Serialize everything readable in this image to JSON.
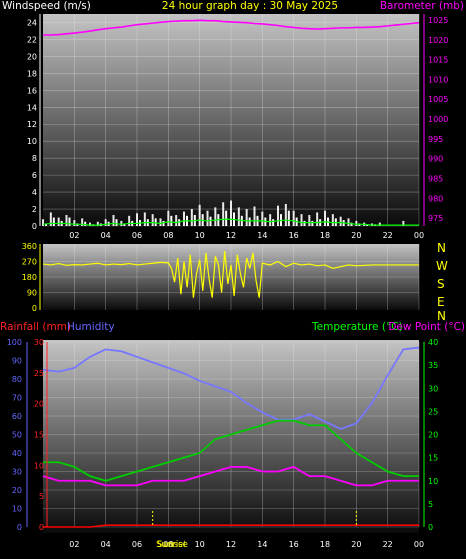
{
  "header": {
    "left_label": "Windspeed (m/s)",
    "title": "24 hour graph day : 30 May 2025",
    "right_label": "Barometer (mb)"
  },
  "colors": {
    "windspeed": "#ffffff",
    "gust": "#ffffff",
    "wind_avg": "#00ff00",
    "barometer": "#ff00ff",
    "direction": "#ffff00",
    "rainfall": "#ff0000",
    "humidity": "#7777ff",
    "temperature": "#00cc00",
    "dewpoint": "#ff00ff",
    "title": "#ffff00",
    "rainfall_axis": "#ff2222",
    "humidity_axis": "#6666ff",
    "temp_axis": "#00ff00",
    "baro_axis": "#ff00ff"
  },
  "x_tick_labels": [
    "02",
    "04",
    "06",
    "08",
    "10",
    "12",
    "14",
    "16",
    "18",
    "20",
    "22",
    "00"
  ],
  "compass": [
    "N",
    "W",
    "S",
    "E",
    "N"
  ],
  "chart_data": [
    {
      "type": "line",
      "name": "wind-barometer",
      "title": "24 hour graph day : 30 May 2025",
      "x_hours": [
        0,
        0.5,
        1,
        1.5,
        2,
        2.5,
        3,
        3.5,
        4,
        4.5,
        5,
        5.5,
        6,
        6.5,
        7,
        7.5,
        8,
        8.5,
        9,
        9.5,
        10,
        10.5,
        11,
        11.5,
        12,
        12.5,
        13,
        13.5,
        14,
        14.5,
        15,
        15.5,
        16,
        16.5,
        17,
        17.5,
        18,
        18.5,
        19,
        19.5,
        20,
        20.5,
        21,
        21.5,
        22,
        22.5,
        23,
        23.5,
        24
      ],
      "left_axis": {
        "label": "Windspeed (m/s)",
        "ticks": [
          0,
          2,
          4,
          6,
          8,
          10,
          12,
          14,
          16,
          18,
          20,
          22,
          24
        ],
        "range": [
          0,
          25
        ]
      },
      "right_axis": {
        "label": "Barometer (mb)",
        "ticks": [
          975,
          980,
          985,
          990,
          995,
          1000,
          1005,
          1010,
          1015,
          1020,
          1025
        ],
        "range": [
          973,
          1026.5
        ]
      },
      "series": [
        {
          "name": "Windspeed",
          "axis": "left",
          "values": [
            0.3,
            1.0,
            0.6,
            1.0,
            0.3,
            0.5,
            0.2,
            0.3,
            0.5,
            0.8,
            0.3,
            0.6,
            0.7,
            0.8,
            0.9,
            0.6,
            1.2,
            0.8,
            1.2,
            1.3,
            1.4,
            1.1,
            1.4,
            1.8,
            1.6,
            1.2,
            1.0,
            1.2,
            1.0,
            0.8,
            1.4,
            1.8,
            1.0,
            0.6,
            0.6,
            0.8,
            1.0,
            0.9,
            0.7,
            0.4,
            0.3,
            0.2,
            0.2,
            0.0,
            0.0,
            0.0,
            0.0,
            0.0,
            0.0
          ]
        },
        {
          "name": "Gust",
          "axis": "left",
          "values": [
            0.8,
            1.6,
            1.0,
            1.3,
            0.7,
            0.9,
            0.4,
            0.5,
            0.8,
            1.3,
            0.6,
            1.2,
            1.5,
            1.6,
            1.4,
            0.9,
            1.8,
            1.3,
            1.7,
            2.0,
            2.5,
            1.8,
            2.2,
            2.8,
            3.0,
            2.2,
            2.0,
            2.3,
            1.7,
            1.4,
            2.4,
            2.6,
            1.8,
            1.4,
            1.3,
            1.6,
            1.8,
            1.4,
            1.1,
            0.9,
            0.6,
            0.4,
            0.3,
            0.4,
            0.0,
            0.0,
            0.6,
            0.0,
            0.0
          ]
        },
        {
          "name": "Average",
          "axis": "left",
          "values": [
            0.2,
            0.3,
            0.3,
            0.3,
            0.2,
            0.2,
            0.1,
            0.1,
            0.2,
            0.3,
            0.2,
            0.3,
            0.3,
            0.4,
            0.4,
            0.3,
            0.5,
            0.4,
            0.6,
            0.6,
            0.7,
            0.6,
            0.7,
            0.8,
            0.8,
            0.7,
            0.6,
            0.6,
            0.6,
            0.5,
            0.6,
            0.7,
            0.6,
            0.4,
            0.4,
            0.4,
            0.5,
            0.4,
            0.4,
            0.3,
            0.2,
            0.2,
            0.1,
            0.1,
            0.1,
            0.1,
            0.1,
            0.1,
            0.1
          ]
        },
        {
          "name": "Barometer",
          "axis": "right",
          "values": [
            1021.2,
            1021.2,
            1021.3,
            1021.5,
            1021.7,
            1021.9,
            1022.2,
            1022.5,
            1022.8,
            1023.0,
            1023.2,
            1023.5,
            1023.8,
            1024.0,
            1024.2,
            1024.4,
            1024.6,
            1024.7,
            1024.8,
            1024.8,
            1024.9,
            1024.8,
            1024.8,
            1024.6,
            1024.5,
            1024.4,
            1024.3,
            1024.1,
            1024.0,
            1023.8,
            1023.6,
            1023.3,
            1023.1,
            1022.9,
            1022.8,
            1022.7,
            1022.8,
            1022.9,
            1023.0,
            1023.0,
            1023.1,
            1023.1,
            1023.2,
            1023.3,
            1023.5,
            1023.7,
            1023.9,
            1024.1,
            1024.3
          ]
        }
      ]
    },
    {
      "type": "scatter",
      "name": "wind-direction",
      "y_axis": {
        "ticks": [
          0,
          90,
          180,
          270,
          360
        ],
        "range": [
          0,
          360
        ]
      },
      "series": [
        {
          "name": "Direction",
          "x_hours": [
            0,
            0.5,
            1,
            1.5,
            2,
            2.5,
            3,
            3.5,
            4,
            4.5,
            5,
            5.5,
            6,
            6.5,
            7,
            7.5,
            8,
            8.2,
            8.4,
            8.6,
            8.8,
            9,
            9.2,
            9.4,
            9.6,
            9.8,
            10,
            10.2,
            10.4,
            10.6,
            10.8,
            11,
            11.2,
            11.4,
            11.6,
            11.8,
            12,
            12.2,
            12.4,
            12.6,
            12.8,
            13,
            13.2,
            13.4,
            13.6,
            13.8,
            14,
            14.5,
            15,
            15.5,
            16,
            16.5,
            17,
            17.5,
            18,
            18.5,
            19,
            19.5,
            20,
            21,
            22,
            23,
            24
          ],
          "values": [
            255,
            250,
            258,
            248,
            252,
            250,
            255,
            260,
            250,
            255,
            252,
            258,
            250,
            255,
            260,
            265,
            262,
            230,
            150,
            290,
            80,
            270,
            120,
            310,
            60,
            200,
            280,
            100,
            320,
            170,
            60,
            300,
            250,
            90,
            330,
            140,
            250,
            70,
            310,
            200,
            120,
            290,
            230,
            320,
            160,
            60,
            260,
            250,
            270,
            240,
            260,
            250,
            255,
            245,
            250,
            230,
            240,
            250,
            245,
            250,
            250,
            250,
            250
          ]
        }
      ]
    },
    {
      "type": "line",
      "name": "rain-humidity-temperature",
      "x_hours": [
        0,
        1,
        2,
        3,
        4,
        5,
        6,
        7,
        8,
        9,
        10,
        11,
        12,
        13,
        14,
        15,
        16,
        17,
        18,
        19,
        20,
        21,
        22,
        23,
        24
      ],
      "left_outer_axis": {
        "label": "Rainfall (mm)",
        "ticks": [
          0,
          5,
          10,
          15,
          20,
          25,
          30
        ],
        "range": [
          0,
          30
        ]
      },
      "left_inner_axis": {
        "label": "Humidity",
        "ticks": [
          0,
          10,
          20,
          30,
          40,
          50,
          60,
          70,
          80,
          90,
          100
        ],
        "range": [
          0,
          100
        ]
      },
      "right_axis": {
        "label": "Temperature (°C)",
        "ticks": [
          0,
          5,
          10,
          15,
          20,
          25,
          30,
          35,
          40
        ],
        "range": [
          0,
          40
        ]
      },
      "right_label_2": "Dew Point (°C)",
      "markers": {
        "sunrise": {
          "label": "Sunrise",
          "hour": 7
        },
        "sunset": {
          "label": "Sunset",
          "hour": 20
        }
      },
      "series": [
        {
          "name": "Rainfall",
          "axis": "left_outer",
          "values": [
            0,
            0,
            0,
            0,
            0.3,
            0.3,
            0.3,
            0.3,
            0.3,
            0.3,
            0.3,
            0.3,
            0.3,
            0.3,
            0.3,
            0.3,
            0.3,
            0.3,
            0.3,
            0.3,
            0.3,
            0.3,
            0.3,
            0.3,
            0.3
          ]
        },
        {
          "name": "Humidity",
          "axis": "left_inner",
          "values": [
            85,
            84,
            86,
            92,
            96,
            95,
            92,
            89,
            86,
            83,
            79,
            76,
            73,
            67,
            62,
            58,
            58,
            61,
            57,
            53,
            56,
            67,
            82,
            96,
            97
          ]
        },
        {
          "name": "Temperature",
          "axis": "right",
          "values": [
            14,
            14,
            13,
            11,
            10,
            11,
            12,
            13,
            14,
            15,
            16,
            19,
            20,
            21,
            22,
            23,
            23,
            22,
            22,
            19,
            16,
            14,
            12,
            11,
            11
          ]
        },
        {
          "name": "Dew Point",
          "axis": "right",
          "values": [
            11,
            10,
            10,
            10,
            9,
            9,
            9,
            10,
            10,
            10,
            11,
            12,
            13,
            13,
            12,
            12,
            13,
            11,
            11,
            10,
            9,
            9,
            10,
            10,
            10
          ]
        }
      ]
    }
  ]
}
